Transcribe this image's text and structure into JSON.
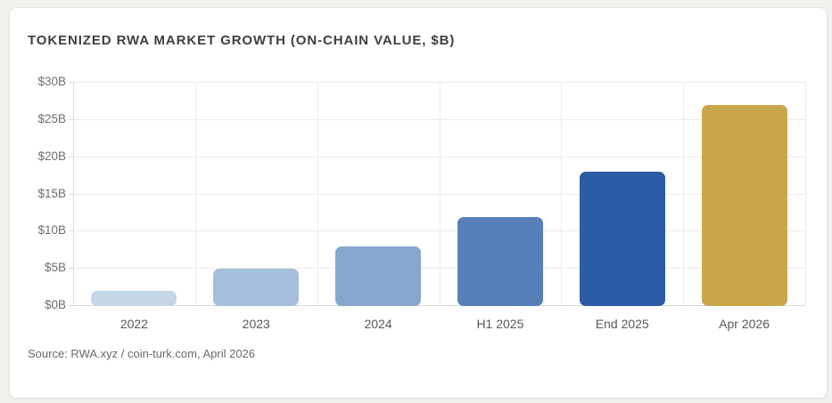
{
  "card": {
    "title": "TOKENIZED RWA MARKET GROWTH (ON-CHAIN VALUE, $B)",
    "source": "Source: RWA.xyz / coin-turk.com, April 2026"
  },
  "colors": {
    "page_bg": "#f2f1ee",
    "card_bg": "#ffffff",
    "card_border": "#e3e2df",
    "title_text": "#403f3c",
    "ytick_text": "#6e6e6e",
    "xtick_text": "#585858",
    "source_text": "#6a6a6a",
    "gridline": "#ebebeb",
    "axis_line": "#d9d9d7"
  },
  "chart_data": {
    "type": "bar",
    "title": "TOKENIZED RWA MARKET GROWTH (ON-CHAIN VALUE, $B)",
    "categories": [
      "2022",
      "2023",
      "2024",
      "H1 2025",
      "End 2025",
      "Apr 2026"
    ],
    "values": [
      2,
      5,
      8,
      12,
      18,
      27
    ],
    "bar_colors": [
      "#c5d6e9",
      "#a6bedd",
      "#86a6d0",
      "#5780b8",
      "#2b5ca5",
      "#c9a64a"
    ],
    "ytick_labels": [
      "$0B",
      "$5B",
      "$10B",
      "$15B",
      "$20B",
      "$25B",
      "$30B"
    ],
    "ytick_values": [
      0,
      5,
      10,
      15,
      20,
      25,
      30
    ],
    "ylim": [
      0,
      30
    ],
    "grid": true,
    "legend": false,
    "xlabel": "",
    "ylabel": "",
    "source": "Source: RWA.xyz / coin-turk.com, April 2026"
  }
}
